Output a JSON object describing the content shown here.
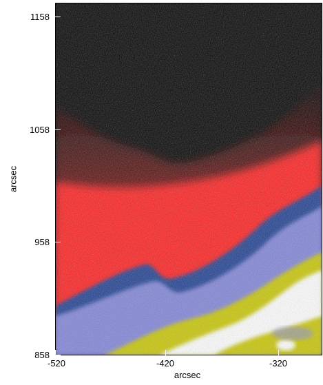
{
  "figure": {
    "xlabel": "arcsec",
    "ylabel": "arcsec"
  },
  "chart_data": {
    "type": "heatmap",
    "title": "",
    "xlabel": "arcsec",
    "ylabel": "arcsec",
    "x_ticks": [
      "-520",
      "-420",
      "-320"
    ],
    "y_ticks": [
      "1158",
      "1058",
      "958",
      "858"
    ],
    "xlim": [
      -520,
      -290
    ],
    "ylim": [
      858,
      1162
    ],
    "colormap": [
      "#000000",
      "#ff1a1a",
      "#1a3a8a",
      "#8888ee",
      "#d4d000",
      "#ffffff"
    ]
  }
}
